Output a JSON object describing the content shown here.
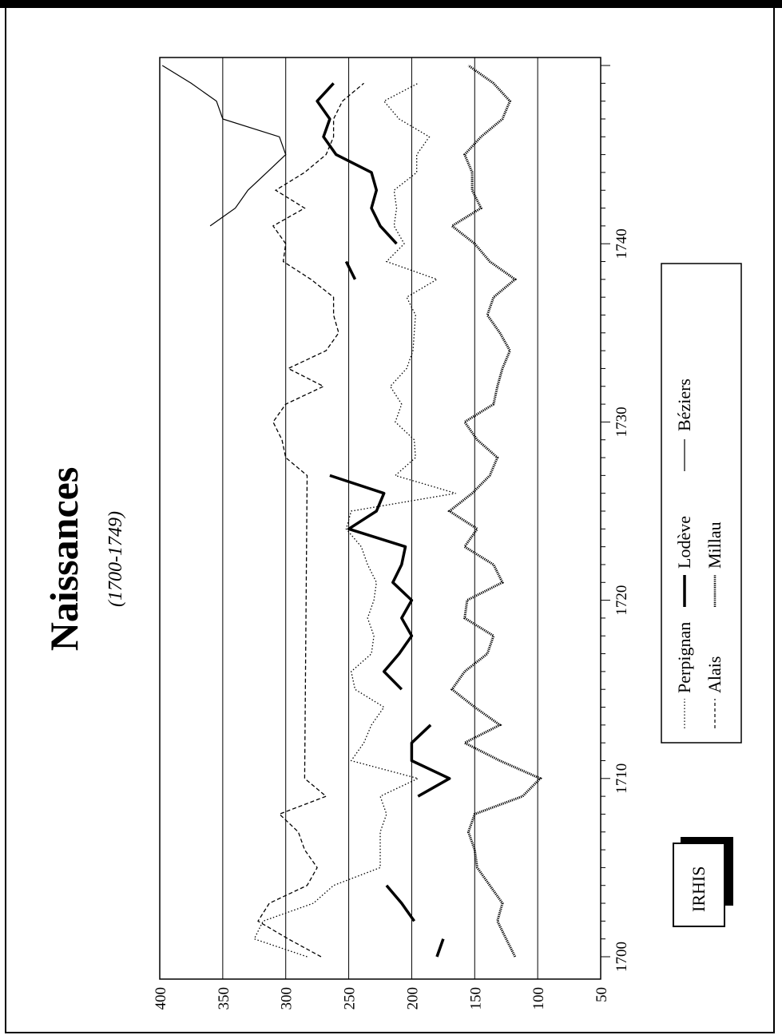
{
  "chart_data": {
    "type": "line",
    "title": "Naissances",
    "subtitle": "(1700-1749)",
    "xlabel": "",
    "ylabel": "",
    "xlim": [
      1700,
      1749
    ],
    "ylim": [
      50,
      400
    ],
    "x_ticks": [
      "1700",
      "1710",
      "1720",
      "1730",
      "1740"
    ],
    "y_ticks": [
      "400",
      "350",
      "300",
      "250",
      "200",
      "150",
      "100",
      "50"
    ],
    "grid": "horizontal",
    "legend_position": "bottom-right",
    "series": [
      {
        "name": "Perpignan",
        "style": "dotted",
        "points": [
          [
            1700,
            283
          ],
          [
            1701,
            325
          ],
          [
            1702,
            318
          ],
          [
            1703,
            278
          ],
          [
            1704,
            262
          ],
          [
            1705,
            225
          ],
          [
            1706,
            225
          ],
          [
            1707,
            225
          ],
          [
            1708,
            220
          ],
          [
            1709,
            225
          ],
          [
            1710,
            195
          ],
          [
            1711,
            248
          ],
          [
            1712,
            238
          ],
          [
            1713,
            232
          ],
          [
            1714,
            222
          ],
          [
            1715,
            245
          ],
          [
            1716,
            248
          ],
          [
            1717,
            232
          ],
          [
            1718,
            230
          ],
          [
            1719,
            235
          ],
          [
            1720,
            230
          ],
          [
            1721,
            228
          ],
          [
            1722,
            235
          ],
          [
            1723,
            240
          ],
          [
            1724,
            252
          ],
          [
            1725,
            248
          ],
          [
            1726,
            165
          ],
          [
            1727,
            213
          ],
          [
            1728,
            197
          ],
          [
            1729,
            198
          ],
          [
            1730,
            213
          ],
          [
            1731,
            208
          ],
          [
            1732,
            217
          ],
          [
            1733,
            204
          ],
          [
            1734,
            199
          ],
          [
            1735,
            198
          ],
          [
            1736,
            197
          ],
          [
            1737,
            204
          ],
          [
            1738,
            180
          ],
          [
            1739,
            220
          ],
          [
            1740,
            206
          ],
          [
            1741,
            214
          ],
          [
            1742,
            212
          ],
          [
            1743,
            214
          ],
          [
            1744,
            196
          ],
          [
            1745,
            196
          ],
          [
            1746,
            186
          ],
          [
            1747,
            210
          ],
          [
            1748,
            222
          ],
          [
            1749,
            195
          ]
        ]
      },
      {
        "name": "Alais",
        "style": "dashed",
        "points": [
          [
            1700,
            272
          ],
          [
            1701,
            298
          ],
          [
            1702,
            322
          ],
          [
            1703,
            313
          ],
          [
            1704,
            283
          ],
          [
            1705,
            275
          ],
          [
            1706,
            285
          ],
          [
            1707,
            290
          ],
          [
            1708,
            305
          ],
          [
            1709,
            268
          ],
          [
            1710,
            285
          ],
          [
            1727,
            283
          ],
          [
            1728,
            300
          ],
          [
            1729,
            303
          ],
          [
            1730,
            310
          ],
          [
            1731,
            300
          ],
          [
            1732,
            270
          ],
          [
            1733,
            298
          ],
          [
            1734,
            268
          ],
          [
            1735,
            258
          ],
          [
            1736,
            262
          ],
          [
            1737,
            262
          ],
          [
            1738,
            280
          ],
          [
            1739,
            302
          ],
          [
            1740,
            300
          ],
          [
            1741,
            310
          ],
          [
            1742,
            285
          ],
          [
            1743,
            308
          ],
          [
            1744,
            285
          ],
          [
            1745,
            268
          ],
          [
            1746,
            262
          ],
          [
            1747,
            262
          ],
          [
            1748,
            255
          ],
          [
            1749,
            238
          ]
        ]
      },
      {
        "name": "Lodève",
        "style": "thick",
        "points_segments": [
          [
            [
              1700,
              180
            ],
            [
              1701,
              175
            ]
          ],
          [
            [
              1702,
              198
            ],
            [
              1703,
              208
            ],
            [
              1704,
              220
            ]
          ],
          [
            [
              1709,
              195
            ],
            [
              1710,
              170
            ],
            [
              1711,
              200
            ],
            [
              1712,
              200
            ],
            [
              1713,
              185
            ]
          ],
          [
            [
              1715,
              208
            ],
            [
              1716,
              222
            ],
            [
              1717,
              210
            ],
            [
              1718,
              200
            ],
            [
              1719,
              208
            ],
            [
              1720,
              200
            ],
            [
              1721,
              215
            ],
            [
              1722,
              208
            ],
            [
              1723,
              205
            ],
            [
              1724,
              250
            ],
            [
              1725,
              228
            ],
            [
              1726,
              222
            ],
            [
              1727,
              265
            ]
          ],
          [
            [
              1738,
              245
            ],
            [
              1739,
              252
            ]
          ],
          [
            [
              1740,
              212
            ],
            [
              1741,
              225
            ],
            [
              1742,
              232
            ],
            [
              1743,
              228
            ],
            [
              1744,
              232
            ],
            [
              1745,
              260
            ],
            [
              1746,
              270
            ],
            [
              1747,
              265
            ],
            [
              1748,
              275
            ],
            [
              1749,
              262
            ]
          ]
        ]
      },
      {
        "name": "Béziers",
        "style": "thin",
        "points": [
          [
            1741,
            360
          ],
          [
            1742,
            340
          ],
          [
            1743,
            330
          ],
          [
            1744,
            315
          ],
          [
            1745,
            300
          ],
          [
            1746,
            305
          ],
          [
            1747,
            350
          ],
          [
            1748,
            355
          ],
          [
            1749,
            375
          ],
          [
            1750,
            398
          ]
        ]
      },
      {
        "name": "Millau",
        "style": "dense-dotted",
        "points": [
          [
            1700,
            118
          ],
          [
            1701,
            125
          ],
          [
            1702,
            132
          ],
          [
            1703,
            128
          ],
          [
            1704,
            138
          ],
          [
            1705,
            148
          ],
          [
            1706,
            150
          ],
          [
            1707,
            155
          ],
          [
            1708,
            150
          ],
          [
            1709,
            112
          ],
          [
            1710,
            98
          ],
          [
            1711,
            130
          ],
          [
            1712,
            158
          ],
          [
            1713,
            130
          ],
          [
            1714,
            150
          ],
          [
            1715,
            168
          ],
          [
            1716,
            158
          ],
          [
            1717,
            140
          ],
          [
            1718,
            135
          ],
          [
            1719,
            158
          ],
          [
            1720,
            156
          ],
          [
            1721,
            128
          ],
          [
            1722,
            135
          ],
          [
            1723,
            158
          ],
          [
            1724,
            148
          ],
          [
            1725,
            170
          ],
          [
            1726,
            152
          ],
          [
            1727,
            138
          ],
          [
            1728,
            132
          ],
          [
            1729,
            148
          ],
          [
            1730,
            158
          ],
          [
            1731,
            135
          ],
          [
            1732,
            132
          ],
          [
            1733,
            128
          ],
          [
            1734,
            122
          ],
          [
            1735,
            130
          ],
          [
            1736,
            140
          ],
          [
            1737,
            135
          ],
          [
            1738,
            118
          ],
          [
            1739,
            138
          ],
          [
            1740,
            150
          ],
          [
            1741,
            168
          ],
          [
            1742,
            145
          ],
          [
            1743,
            152
          ],
          [
            1744,
            152
          ],
          [
            1745,
            158
          ],
          [
            1746,
            145
          ],
          [
            1747,
            128
          ],
          [
            1748,
            122
          ],
          [
            1749,
            135
          ],
          [
            1750,
            155
          ]
        ]
      }
    ]
  },
  "legend": {
    "items": [
      {
        "label": "Perpignan"
      },
      {
        "label": "Lodève"
      },
      {
        "label": "Béziers"
      },
      {
        "label": "Alais"
      },
      {
        "label": "Millau"
      }
    ]
  },
  "logo": {
    "text": "IRHIS"
  }
}
